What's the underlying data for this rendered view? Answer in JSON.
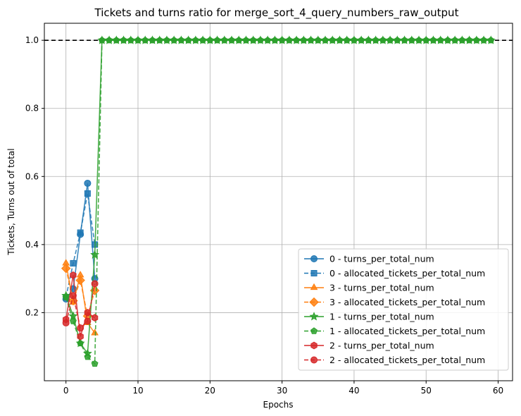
{
  "chart_data": {
    "type": "line",
    "title": "Tickets and turns ratio for merge_sort_4_query_numbers_raw_output",
    "xlabel": "Epochs",
    "ylabel": "Tickets, Turns out of total",
    "xlim": [
      -3,
      62
    ],
    "ylim": [
      0.0,
      1.05
    ],
    "xticks": [
      0,
      10,
      20,
      30,
      40,
      50,
      60
    ],
    "yticks": [
      0.2,
      0.4,
      0.6,
      0.8,
      1.0
    ],
    "xtick_labels": [
      "0",
      "10",
      "20",
      "30",
      "40",
      "50",
      "60"
    ],
    "ytick_labels": [
      "0.2",
      "0.4",
      "0.6",
      "0.8",
      "1.0"
    ],
    "grid": true,
    "legend_position": "lower-right",
    "reference_line": {
      "y": 1.0,
      "style": "dashed",
      "color": "#000000"
    },
    "series": [
      {
        "name": "0 - turns_per_total_num",
        "color": "#1f77b4",
        "marker": "circle",
        "dashed": false,
        "x": [
          0,
          1,
          2,
          3,
          4
        ],
        "y": [
          0.24,
          0.27,
          0.43,
          0.58,
          0.3
        ]
      },
      {
        "name": "0 - allocated_tickets_per_total_num",
        "color": "#1f77b4",
        "marker": "square",
        "dashed": true,
        "x": [
          0,
          1,
          2,
          3,
          4
        ],
        "y": [
          0.245,
          0.345,
          0.435,
          0.55,
          0.4
        ]
      },
      {
        "name": "3 - turns_per_total_num",
        "color": "#ff7f0e",
        "marker": "triangle",
        "dashed": false,
        "x": [
          0,
          1,
          2,
          3,
          4
        ],
        "y": [
          0.345,
          0.23,
          0.31,
          0.17,
          0.14
        ]
      },
      {
        "name": "3 - allocated_tickets_per_total_num",
        "color": "#ff7f0e",
        "marker": "diamond",
        "dashed": true,
        "x": [
          0,
          1,
          2,
          3,
          4
        ],
        "y": [
          0.33,
          0.235,
          0.295,
          0.19,
          0.265
        ]
      },
      {
        "name": "1 - turns_per_total_num",
        "color": "#2ca02c",
        "marker": "star",
        "dashed": false,
        "x": [
          0,
          1,
          2,
          3,
          4,
          5,
          6,
          7,
          8,
          9,
          10,
          11,
          12,
          13,
          14,
          15,
          16,
          17,
          18,
          19,
          20,
          21,
          22,
          23,
          24,
          25,
          26,
          27,
          28,
          29,
          30,
          31,
          32,
          33,
          34,
          35,
          36,
          37,
          38,
          39,
          40,
          41,
          42,
          43,
          44,
          45,
          46,
          47,
          48,
          49,
          50,
          51,
          52,
          53,
          54,
          55,
          56,
          57,
          58,
          59
        ],
        "y": [
          0.25,
          0.19,
          0.11,
          0.08,
          0.37,
          1.0,
          1.0,
          1.0,
          1.0,
          1.0,
          1.0,
          1.0,
          1.0,
          1.0,
          1.0,
          1.0,
          1.0,
          1.0,
          1.0,
          1.0,
          1.0,
          1.0,
          1.0,
          1.0,
          1.0,
          1.0,
          1.0,
          1.0,
          1.0,
          1.0,
          1.0,
          1.0,
          1.0,
          1.0,
          1.0,
          1.0,
          1.0,
          1.0,
          1.0,
          1.0,
          1.0,
          1.0,
          1.0,
          1.0,
          1.0,
          1.0,
          1.0,
          1.0,
          1.0,
          1.0,
          1.0,
          1.0,
          1.0,
          1.0,
          1.0,
          1.0,
          1.0,
          1.0,
          1.0,
          1.0
        ]
      },
      {
        "name": "1 - allocated_tickets_per_total_num",
        "color": "#2ca02c",
        "marker": "pentagon",
        "dashed": true,
        "x": [
          0,
          1,
          2,
          3,
          4,
          5,
          6,
          7,
          8,
          9,
          10,
          11,
          12,
          13,
          14,
          15,
          16,
          17,
          18,
          19,
          20,
          21,
          22,
          23,
          24,
          25,
          26,
          27,
          28,
          29,
          30,
          31,
          32,
          33,
          34,
          35,
          36,
          37,
          38,
          39,
          40,
          41,
          42,
          43,
          44,
          45,
          46,
          47,
          48,
          49,
          50,
          51,
          52,
          53,
          54,
          55,
          56,
          57,
          58,
          59
        ],
        "y": [
          0.245,
          0.175,
          0.11,
          0.07,
          0.05,
          1.0,
          1.0,
          1.0,
          1.0,
          1.0,
          1.0,
          1.0,
          1.0,
          1.0,
          1.0,
          1.0,
          1.0,
          1.0,
          1.0,
          1.0,
          1.0,
          1.0,
          1.0,
          1.0,
          1.0,
          1.0,
          1.0,
          1.0,
          1.0,
          1.0,
          1.0,
          1.0,
          1.0,
          1.0,
          1.0,
          1.0,
          1.0,
          1.0,
          1.0,
          1.0,
          1.0,
          1.0,
          1.0,
          1.0,
          1.0,
          1.0,
          1.0,
          1.0,
          1.0,
          1.0,
          1.0,
          1.0,
          1.0,
          1.0,
          1.0,
          1.0,
          1.0,
          1.0,
          1.0,
          1.0
        ]
      },
      {
        "name": "2 - turns_per_total_num",
        "color": "#d62728",
        "marker": "hexagon",
        "dashed": false,
        "x": [
          0,
          1,
          2,
          3,
          4
        ],
        "y": [
          0.18,
          0.31,
          0.13,
          0.2,
          0.185
        ]
      },
      {
        "name": "2 - allocated_tickets_per_total_num",
        "color": "#d62728",
        "marker": "circle",
        "dashed": true,
        "x": [
          0,
          1,
          2,
          3,
          4
        ],
        "y": [
          0.17,
          0.25,
          0.155,
          0.175,
          0.285
        ]
      }
    ]
  }
}
